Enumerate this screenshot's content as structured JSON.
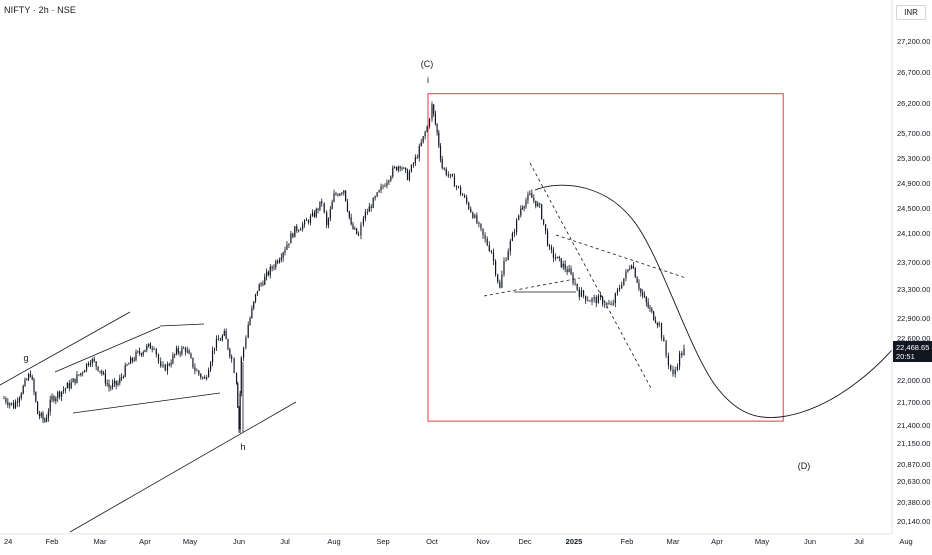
{
  "header": {
    "symbol_title": "NIFTY · 2h · NSE",
    "currency": "INR"
  },
  "price_tag": {
    "price": "22,468.65",
    "countdown": "20:51",
    "value": 22468.65
  },
  "annotations": {
    "wave_c": "(C)",
    "wave_i": "i",
    "wave_g": "g",
    "wave_h": "h",
    "wave_d": "(D)"
  },
  "colors": {
    "candle": "#131722",
    "box": "#f23645",
    "line": "#131722",
    "price_tag_bg": "#131722",
    "axis_text": "#131722"
  },
  "chart_data": {
    "type": "candlestick",
    "title": "NIFTY · 2h · NSE",
    "xlabel": "",
    "ylabel": "",
    "y_axis": {
      "position": "right",
      "ticks": [
        27200,
        26700,
        26200,
        25700,
        25300,
        24900,
        24500,
        24100,
        23700,
        23300,
        22900,
        22600,
        22000,
        21700,
        21400,
        21150,
        20870,
        20630,
        20380,
        20140
      ],
      "tick_labels": [
        "27,200.00",
        "26,700.00",
        "26,200.00",
        "25,700.00",
        "25,300.00",
        "24,900.00",
        "24,500.00",
        "24,100.00",
        "23,700.00",
        "23,300.00",
        "22,900.00",
        "22,600.00",
        "22,000.00",
        "21,700.00",
        "21,400.00",
        "21,150.00",
        "20,870.00",
        "20,630.00",
        "20,380.00",
        "20,140.00"
      ]
    },
    "x_axis": {
      "labels": [
        "24",
        "Feb",
        "Mar",
        "Apr",
        "May",
        "Jun",
        "Jul",
        "Aug",
        "Sep",
        "Oct",
        "Nov",
        "Dec",
        "2025",
        "Feb",
        "Mar",
        "Apr",
        "May",
        "Jun",
        "Jul",
        "Aug"
      ],
      "month_index": [
        0,
        1,
        2,
        3,
        4,
        5,
        6,
        7,
        8,
        9,
        10,
        11,
        12,
        13,
        14,
        15,
        16,
        17,
        18,
        19
      ]
    },
    "price_path": [
      [
        0.0,
        21750
      ],
      [
        0.2,
        21650
      ],
      [
        0.4,
        21900
      ],
      [
        0.55,
        22100
      ],
      [
        0.7,
        21550
      ],
      [
        0.85,
        21450
      ],
      [
        1.0,
        21750
      ],
      [
        1.2,
        21850
      ],
      [
        1.4,
        21950
      ],
      [
        1.6,
        22100
      ],
      [
        1.8,
        22300
      ],
      [
        2.0,
        22150
      ],
      [
        2.2,
        21900
      ],
      [
        2.4,
        21950
      ],
      [
        2.6,
        22200
      ],
      [
        2.8,
        22350
      ],
      [
        3.0,
        22450
      ],
      [
        3.2,
        22500
      ],
      [
        3.35,
        22150
      ],
      [
        3.5,
        22200
      ],
      [
        3.7,
        22400
      ],
      [
        3.9,
        22450
      ],
      [
        4.1,
        22150
      ],
      [
        4.3,
        22000
      ],
      [
        4.5,
        22500
      ],
      [
        4.7,
        22650
      ],
      [
        4.85,
        22300
      ],
      [
        4.95,
        22000
      ],
      [
        5.0,
        21350
      ],
      [
        5.05,
        22300
      ],
      [
        5.2,
        22800
      ],
      [
        5.4,
        23300
      ],
      [
        5.6,
        23500
      ],
      [
        5.8,
        23700
      ],
      [
        6.0,
        23900
      ],
      [
        6.2,
        24150
      ],
      [
        6.4,
        24250
      ],
      [
        6.6,
        24400
      ],
      [
        6.75,
        24600
      ],
      [
        6.85,
        24200
      ],
      [
        7.0,
        24700
      ],
      [
        7.2,
        24800
      ],
      [
        7.35,
        24200
      ],
      [
        7.5,
        24050
      ],
      [
        7.6,
        24350
      ],
      [
        7.8,
        24600
      ],
      [
        8.0,
        24850
      ],
      [
        8.2,
        25100
      ],
      [
        8.35,
        25200
      ],
      [
        8.5,
        25000
      ],
      [
        8.7,
        25350
      ],
      [
        8.9,
        25800
      ],
      [
        9.0,
        26150
      ],
      [
        9.1,
        25700
      ],
      [
        9.2,
        25150
      ],
      [
        9.4,
        24950
      ],
      [
        9.6,
        24700
      ],
      [
        9.8,
        24400
      ],
      [
        10.0,
        24050
      ],
      [
        10.2,
        23850
      ],
      [
        10.4,
        23300
      ],
      [
        10.5,
        23700
      ],
      [
        10.7,
        24050
      ],
      [
        10.9,
        24500
      ],
      [
        11.1,
        24700
      ],
      [
        11.3,
        24500
      ],
      [
        11.5,
        23850
      ],
      [
        11.7,
        23700
      ],
      [
        11.9,
        23550
      ],
      [
        12.1,
        23250
      ],
      [
        12.3,
        23150
      ],
      [
        12.5,
        23150
      ],
      [
        12.7,
        23050
      ],
      [
        12.9,
        23400
      ],
      [
        13.1,
        23700
      ],
      [
        13.3,
        23250
      ],
      [
        13.5,
        23000
      ],
      [
        13.7,
        22800
      ],
      [
        13.85,
        22350
      ],
      [
        14.0,
        22050
      ],
      [
        14.15,
        22350
      ],
      [
        14.3,
        22450
      ]
    ],
    "drawings": {
      "projection_curve_label": "(D)",
      "highlight_box": {
        "x_start": 9.0,
        "x_end": 16.4,
        "y_top": 26350,
        "y_bottom": 21450
      }
    },
    "last_price": 22468.65,
    "grid": false,
    "legend": "none"
  }
}
